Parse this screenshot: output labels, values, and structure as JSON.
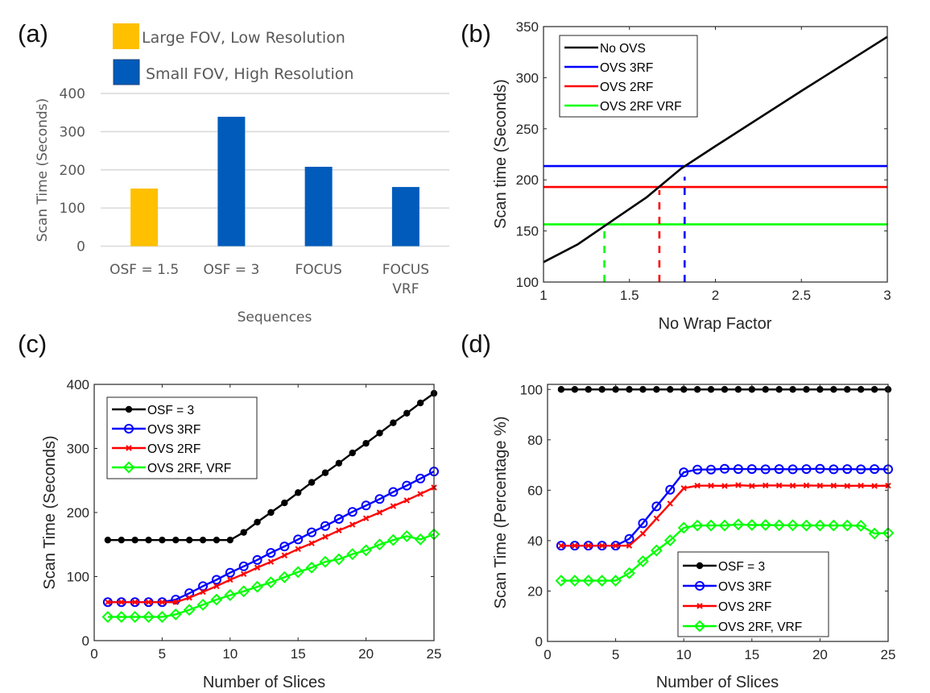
{
  "panels": {
    "a": {
      "label": "(a)"
    },
    "b": {
      "label": "(b)"
    },
    "c": {
      "label": "(c)"
    },
    "d": {
      "label": "(d)"
    }
  },
  "chart_data": [
    {
      "id": "a",
      "type": "bar",
      "title": "",
      "xlabel": "Sequences",
      "ylabel": "Scan Time (Seconds)",
      "ylim": [
        0,
        400
      ],
      "yticks": [
        0,
        100,
        200,
        300,
        400
      ],
      "grid": true,
      "categories": [
        [
          "OSF = 1.5"
        ],
        [
          "OSF = 3"
        ],
        [
          "FOCUS"
        ],
        [
          "FOCUS",
          "VRF"
        ]
      ],
      "values": [
        151,
        339,
        208,
        155
      ],
      "bar_groups": [
        "Large FOV, Low Resolution",
        "Small FOV, High Resolution",
        "Small FOV, High Resolution",
        "Small FOV, High Resolution"
      ],
      "legend": [
        {
          "name": "Large FOV, Low Resolution",
          "color": "#FFC000"
        },
        {
          "name": "Small FOV, High Resolution",
          "color": "#005BBB"
        }
      ],
      "legend_position": "top"
    },
    {
      "id": "b",
      "type": "line",
      "title": "",
      "xlabel": "No Wrap Factor",
      "ylabel": "Scan time (Seconds)",
      "xlim": [
        1,
        3
      ],
      "ylim": [
        100,
        350
      ],
      "xticks": [
        1,
        1.5,
        2,
        2.5,
        3
      ],
      "yticks": [
        100,
        150,
        200,
        250,
        300,
        350
      ],
      "grid": false,
      "legend_position": "top-left",
      "series": [
        {
          "name": "No OVS",
          "color": "#000000",
          "x": [
            1,
            1.2,
            1.4,
            1.6,
            1.7,
            1.8,
            2,
            2.5,
            3
          ],
          "y": [
            119.5,
            137,
            160,
            183,
            197,
            211,
            233,
            287,
            340
          ]
        },
        {
          "name": "OVS 3RF",
          "color": "#0000FF",
          "x": [
            1,
            3
          ],
          "y": [
            213.5,
            213.5
          ]
        },
        {
          "name": "OVS 2RF",
          "color": "#FF0000",
          "x": [
            1,
            3
          ],
          "y": [
            193,
            193
          ]
        },
        {
          "name": "OVS 2RF VRF",
          "color": "#00FF00",
          "x": [
            1,
            3
          ],
          "y": [
            156.5,
            156.5
          ]
        }
      ],
      "annotations": [
        {
          "type": "dashed-vline",
          "color": "#00FF00",
          "x": 1.354,
          "y_from": 100,
          "y_to": 152
        },
        {
          "type": "dashed-vline",
          "color": "#FF0000",
          "x": 1.674,
          "y_from": 100,
          "y_to": 190
        },
        {
          "type": "dashed-vline",
          "color": "#0000FF",
          "x": 1.821,
          "y_from": 100,
          "y_to": 203
        }
      ]
    },
    {
      "id": "c",
      "type": "line",
      "title": "",
      "xlabel": "Number of Slices",
      "ylabel": "Scan Time (Seconds)",
      "xlim": [
        0,
        25
      ],
      "ylim": [
        0,
        400
      ],
      "xticks": [
        0,
        5,
        10,
        15,
        20,
        25
      ],
      "yticks": [
        0,
        100,
        200,
        300,
        400
      ],
      "grid": false,
      "legend_position": "top-left",
      "x": [
        1,
        2,
        3,
        4,
        5,
        6,
        7,
        8,
        9,
        10,
        11,
        12,
        13,
        14,
        15,
        16,
        17,
        18,
        19,
        20,
        21,
        22,
        23,
        24,
        25
      ],
      "series": [
        {
          "name": "OSF = 3",
          "color": "#000000",
          "marker": "dot",
          "values": [
            157,
            157,
            157,
            157,
            157,
            157,
            157,
            157,
            157,
            157,
            169,
            185,
            200,
            215,
            231,
            247,
            262,
            277,
            293,
            308,
            324,
            340,
            355,
            371,
            386
          ]
        },
        {
          "name": "OVS 3RF",
          "color": "#0000FF",
          "marker": "circle",
          "values": [
            60,
            60,
            60,
            60,
            60,
            64,
            74,
            85,
            95,
            106,
            116,
            126,
            137,
            147,
            158,
            169,
            179,
            190,
            201,
            211,
            221,
            232,
            242,
            253,
            264
          ]
        },
        {
          "name": "OVS 2RF",
          "color": "#FF0000",
          "marker": "x",
          "values": [
            60,
            60,
            60,
            60,
            60,
            60,
            67,
            76,
            85,
            95,
            104,
            114,
            123,
            133,
            143,
            152,
            162,
            172,
            181,
            191,
            200,
            210,
            219,
            229,
            239
          ]
        },
        {
          "name": "OVS 2RF, VRF",
          "color": "#00FF00",
          "marker": "diamond",
          "values": [
            37,
            37,
            37,
            37,
            37,
            41,
            48,
            56,
            64,
            71,
            77,
            84,
            91,
            99,
            107,
            114,
            123,
            127,
            135,
            141,
            150,
            157,
            163,
            158,
            166
          ]
        }
      ]
    },
    {
      "id": "d",
      "type": "line",
      "title": "",
      "xlabel": "Number of Slices",
      "ylabel": "Scan Time (Percentage %)",
      "xlim": [
        0,
        25
      ],
      "ylim": [
        0,
        102
      ],
      "xticks": [
        0,
        5,
        10,
        15,
        20,
        25
      ],
      "yticks": [
        0,
        20,
        40,
        60,
        80,
        100
      ],
      "grid": false,
      "legend_position": "bottom-center",
      "x": [
        1,
        2,
        3,
        4,
        5,
        6,
        7,
        8,
        9,
        10,
        11,
        12,
        13,
        14,
        15,
        16,
        17,
        18,
        19,
        20,
        21,
        22,
        23,
        24,
        25
      ],
      "series": [
        {
          "name": "OSF = 3",
          "color": "#000000",
          "marker": "dot",
          "values": [
            100,
            100,
            100,
            100,
            100,
            100,
            100,
            100,
            100,
            100,
            100,
            100,
            100,
            100,
            100,
            100,
            100,
            100,
            100,
            100,
            100,
            100,
            100,
            100,
            100
          ]
        },
        {
          "name": "OVS 3RF",
          "color": "#0000FF",
          "marker": "circle",
          "values": [
            38,
            38,
            38,
            38,
            38,
            40.7,
            46.9,
            53.6,
            60.2,
            67.1,
            68.2,
            68.2,
            68.5,
            68.4,
            68.4,
            68.3,
            68.4,
            68.3,
            68.4,
            68.5,
            68.3,
            68.4,
            68.3,
            68.4,
            68.3
          ]
        },
        {
          "name": "OVS 2RF",
          "color": "#FF0000",
          "marker": "x",
          "values": [
            38,
            38,
            38,
            38,
            38,
            38,
            42.8,
            48.8,
            54.7,
            60.8,
            61.8,
            61.8,
            61.7,
            62,
            61.7,
            61.9,
            61.9,
            61.8,
            61.9,
            61.8,
            61.8,
            61.7,
            61.8,
            61.7,
            61.8
          ]
        },
        {
          "name": "OVS 2RF, VRF",
          "color": "#00FF00",
          "marker": "diamond",
          "values": [
            24.1,
            24.1,
            24.1,
            24.1,
            24.1,
            27.1,
            31.8,
            36.1,
            40.1,
            45.1,
            46,
            46,
            46,
            46.4,
            46.2,
            46.2,
            46.1,
            46.1,
            46,
            46,
            46,
            46,
            45.9,
            42.8,
            43
          ]
        }
      ]
    }
  ]
}
